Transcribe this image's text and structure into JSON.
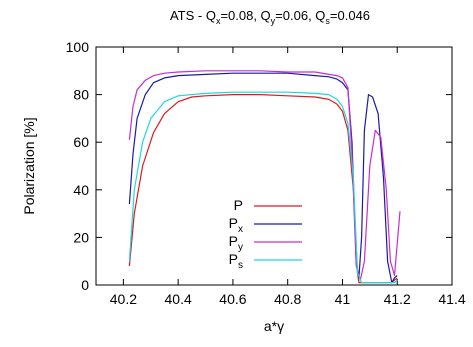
{
  "chart_data": {
    "type": "line",
    "title": "ATS - Q",
    "title_parts": {
      "qx_base": "x",
      "qx_val": "=0.08, Q",
      "qy_base": "y",
      "qy_val": "=0.06, Q",
      "qs_base": "s",
      "qs_val": "=0.046"
    },
    "xlabel": "a*γ",
    "ylabel": "Polarization [%]",
    "xlim": [
      40.1,
      41.4
    ],
    "ylim": [
      0,
      100
    ],
    "xticks": [
      "40.2",
      "40.4",
      "40.6",
      "40.8",
      "41",
      "41.2",
      "41.4"
    ],
    "yticks": [
      "0",
      "20",
      "40",
      "60",
      "80",
      "100"
    ],
    "legend_position": "inside-bottom-center",
    "series": [
      {
        "name": "P",
        "sub": "",
        "color": "#e0191c",
        "x": [
          40.222,
          40.24,
          40.27,
          40.31,
          40.35,
          40.4,
          40.45,
          40.5,
          40.6,
          40.7,
          40.8,
          40.9,
          40.95,
          40.98,
          41.0,
          41.02,
          41.04,
          41.055,
          41.06,
          41.08,
          41.1,
          41.13,
          41.16,
          41.18,
          41.19,
          41.2
        ],
        "y": [
          8,
          30,
          50,
          64,
          72,
          77,
          79,
          79.5,
          80,
          80,
          79.5,
          79,
          78,
          76,
          73,
          65,
          40,
          5,
          1,
          1,
          1,
          1,
          1,
          1,
          2,
          3
        ]
      },
      {
        "name": "P",
        "sub": "x",
        "color": "#1a1aa6",
        "x": [
          40.222,
          40.235,
          40.25,
          40.28,
          40.31,
          40.35,
          40.4,
          40.5,
          40.6,
          40.7,
          40.8,
          40.9,
          40.95,
          40.98,
          41.0,
          41.02,
          41.035,
          41.05,
          41.06,
          41.07,
          41.08,
          41.095,
          41.11,
          41.13,
          41.15,
          41.165,
          41.18,
          41.19,
          41.2
        ],
        "y": [
          34,
          55,
          70,
          80,
          85,
          87,
          88,
          88.5,
          89,
          89,
          89,
          88,
          87.5,
          86.5,
          85,
          82,
          60,
          10,
          3,
          20,
          65,
          80,
          79,
          72,
          45,
          10,
          1,
          3,
          4
        ]
      },
      {
        "name": "P",
        "sub": "y",
        "color": "#c72ecb",
        "x": [
          40.222,
          40.235,
          40.25,
          40.28,
          40.31,
          40.35,
          40.4,
          40.5,
          40.6,
          40.7,
          40.8,
          40.9,
          40.95,
          40.98,
          41.0,
          41.02,
          41.035,
          41.05,
          41.065,
          41.08,
          41.1,
          41.12,
          41.14,
          41.16,
          41.175,
          41.19,
          41.21
        ],
        "y": [
          61,
          75,
          82,
          86,
          88,
          89,
          89.5,
          90,
          90,
          90,
          89.5,
          89.5,
          88.5,
          88,
          87,
          83,
          55,
          8,
          2,
          10,
          50,
          65,
          62,
          40,
          10,
          4,
          31
        ]
      },
      {
        "name": "P",
        "sub": "s",
        "color": "#1fd8da",
        "x": [
          40.222,
          40.24,
          40.27,
          40.3,
          40.35,
          40.4,
          40.5,
          40.6,
          40.7,
          40.8,
          40.9,
          40.95,
          40.98,
          41.0,
          41.02,
          41.04,
          41.055,
          41.07,
          41.1,
          41.15,
          41.19,
          41.2
        ],
        "y": [
          10,
          40,
          60,
          70,
          77,
          79.5,
          80.5,
          81,
          81,
          81,
          80.5,
          80,
          78,
          75,
          68,
          45,
          5,
          1,
          1,
          1,
          1,
          2
        ]
      }
    ]
  }
}
